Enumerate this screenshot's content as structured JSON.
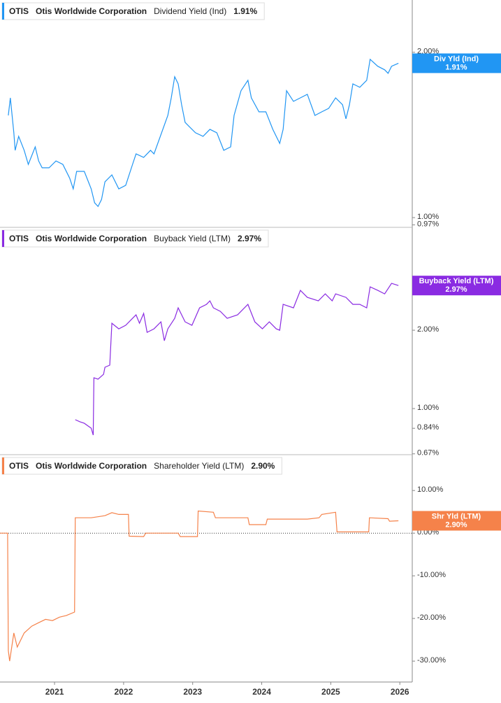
{
  "chart_data": [
    {
      "type": "line",
      "log": true,
      "header": {
        "ticker": "OTIS",
        "company": "Otis Worldwide Corporation",
        "metric": "Dividend Yield (Ind)",
        "value": "1.91%"
      },
      "x": [
        2020.33,
        2020.36,
        2020.41,
        2020.43,
        2020.48,
        2020.56,
        2020.62,
        2020.72,
        2020.77,
        2020.82,
        2020.92,
        2021.02,
        2021.12,
        2021.22,
        2021.27,
        2021.32,
        2021.43,
        2021.53,
        2021.58,
        2021.63,
        2021.68,
        2021.73,
        2021.83,
        2021.93,
        2022.03,
        2022.13,
        2022.18,
        2022.29,
        2022.39,
        2022.44,
        2022.64,
        2022.69,
        2022.74,
        2022.79,
        2022.84,
        2022.89,
        2022.94,
        2023.04,
        2023.15,
        2023.25,
        2023.35,
        2023.45,
        2023.55,
        2023.6,
        2023.7,
        2023.8,
        2023.85,
        2023.96,
        2024.06,
        2024.16,
        2024.26,
        2024.31,
        2024.36,
        2024.46,
        2024.56,
        2024.66,
        2024.77,
        2024.87,
        2024.97,
        2025.07,
        2025.17,
        2025.22,
        2025.27,
        2025.32,
        2025.42,
        2025.52,
        2025.57,
        2025.68,
        2025.78,
        2025.83,
        2025.88,
        2025.98
      ],
      "series": [
        {
          "name": "Div Yld (Ind)",
          "color": "#2196f3",
          "values": [
            1.535,
            1.652,
            1.427,
            1.326,
            1.406,
            1.326,
            1.25,
            1.345,
            1.268,
            1.232,
            1.232,
            1.268,
            1.25,
            1.179,
            1.128,
            1.214,
            1.214,
            1.128,
            1.064,
            1.048,
            1.079,
            1.162,
            1.196,
            1.128,
            1.145,
            1.25,
            1.306,
            1.287,
            1.326,
            1.306,
            1.535,
            1.652,
            1.805,
            1.752,
            1.605,
            1.491,
            1.469,
            1.427,
            1.406,
            1.448,
            1.427,
            1.326,
            1.345,
            1.535,
            1.702,
            1.778,
            1.652,
            1.558,
            1.558,
            1.448,
            1.365,
            1.448,
            1.702,
            1.628,
            1.652,
            1.677,
            1.535,
            1.558,
            1.581,
            1.652,
            1.605,
            1.513,
            1.605,
            1.752,
            1.727,
            1.778,
            1.942,
            1.886,
            1.858,
            1.831,
            1.886,
            1.91
          ]
        }
      ],
      "xlim": [
        2020.21,
        2026.18
      ],
      "ylim": [
        0.96,
        2.49
      ],
      "yticks": [
        {
          "value": 2,
          "label": "2.00%"
        },
        {
          "value": 1,
          "label": "1.00%"
        },
        {
          "value": 0.97,
          "label": "0.97%"
        }
      ]
    },
    {
      "type": "line",
      "log": true,
      "header": {
        "ticker": "OTIS",
        "company": "Otis Worldwide Corporation",
        "metric": "Buyback Yield (LTM)",
        "value": "2.97%"
      },
      "x": [
        2021.3,
        2021.37,
        2021.43,
        2021.53,
        2021.56,
        2021.57,
        2021.63,
        2021.71,
        2021.73,
        2021.8,
        2021.83,
        2021.93,
        2022.03,
        2022.13,
        2022.18,
        2022.23,
        2022.29,
        2022.34,
        2022.44,
        2022.54,
        2022.59,
        2022.64,
        2022.74,
        2022.79,
        2022.89,
        2022.99,
        2023.1,
        2023.2,
        2023.25,
        2023.3,
        2023.4,
        2023.5,
        2023.65,
        2023.8,
        2023.9,
        2024.01,
        2024.11,
        2024.21,
        2024.26,
        2024.31,
        2024.46,
        2024.56,
        2024.66,
        2024.82,
        2024.92,
        2025.02,
        2025.07,
        2025.22,
        2025.32,
        2025.42,
        2025.52,
        2025.57,
        2025.68,
        2025.78,
        2025.88,
        2025.98
      ],
      "series": [
        {
          "name": "Buyback Yield (LTM)",
          "color": "#8a2be2",
          "values": [
            0.906,
            0.889,
            0.878,
            0.841,
            0.791,
            1.313,
            1.297,
            1.354,
            1.441,
            1.468,
            2.128,
            2.025,
            2.089,
            2.222,
            2.291,
            2.128,
            2.32,
            1.963,
            2.025,
            2.154,
            1.823,
            2.025,
            2.222,
            2.438,
            2.154,
            2.089,
            2.438,
            2.514,
            2.594,
            2.438,
            2.364,
            2.222,
            2.291,
            2.514,
            2.154,
            2.025,
            2.154,
            2.025,
            2.0,
            2.514,
            2.438,
            2.846,
            2.675,
            2.594,
            2.759,
            2.594,
            2.759,
            2.675,
            2.514,
            2.514,
            2.438,
            2.935,
            2.846,
            2.759,
            3.028,
            2.97
          ]
        }
      ],
      "xlim": [
        2020.21,
        2026.18
      ],
      "ylim": [
        0.665,
        4.97
      ],
      "yticks": [
        {
          "value": 2,
          "label": "2.00%"
        },
        {
          "value": 1,
          "label": "1.00%"
        },
        {
          "value": 0.84,
          "label": "0.84%"
        },
        {
          "value": 0.67,
          "label": "0.67%"
        }
      ]
    },
    {
      "type": "line",
      "log": false,
      "zero_line": true,
      "header": {
        "ticker": "OTIS",
        "company": "Otis Worldwide Corporation",
        "metric": "Shareholder Yield (LTM)",
        "value": "2.90%"
      },
      "x": [
        2020.21,
        2020.32,
        2020.33,
        2020.35,
        2020.41,
        2020.46,
        2020.56,
        2020.67,
        2020.77,
        2020.87,
        2020.97,
        2021.07,
        2021.17,
        2021.29,
        2021.3,
        2021.53,
        2021.73,
        2021.83,
        2021.93,
        2022.07,
        2022.08,
        2022.29,
        2022.32,
        2022.79,
        2022.82,
        2023.07,
        2023.08,
        2023.3,
        2023.33,
        2023.8,
        2023.82,
        2024.06,
        2024.08,
        2024.66,
        2024.83,
        2024.87,
        2025.07,
        2025.09,
        2025.55,
        2025.56,
        2025.83,
        2025.85,
        2025.98
      ],
      "series": [
        {
          "name": "Shr Yld (LTM)",
          "color": "#f5824a",
          "values": [
            0,
            0,
            -27.5,
            -30.0,
            -23.4,
            -26.7,
            -23.4,
            -21.8,
            -21.0,
            -20.2,
            -20.5,
            -19.7,
            -19.3,
            -18.5,
            3.6,
            3.6,
            4.1,
            4.8,
            4.4,
            4.4,
            -0.7,
            -0.8,
            0,
            0,
            -0.8,
            -0.8,
            5.2,
            4.9,
            3.6,
            3.6,
            2.0,
            2.0,
            3.3,
            3.3,
            3.6,
            4.4,
            4.9,
            0.3,
            0.3,
            3.6,
            3.4,
            2.8,
            2.9
          ]
        }
      ],
      "xlim": [
        2020.21,
        2026.18
      ],
      "ylim": [
        -34.9,
        18.4
      ],
      "yticks": [
        {
          "value": 10,
          "label": "10.00%"
        },
        {
          "value": 0,
          "label": "0.00%"
        },
        {
          "value": -10,
          "label": "-10.00%"
        },
        {
          "value": -20,
          "label": "-20.00%"
        },
        {
          "value": -30,
          "label": "-30.00%"
        }
      ],
      "xticks": [
        2021,
        2022,
        2023,
        2024,
        2025,
        2026
      ]
    }
  ]
}
